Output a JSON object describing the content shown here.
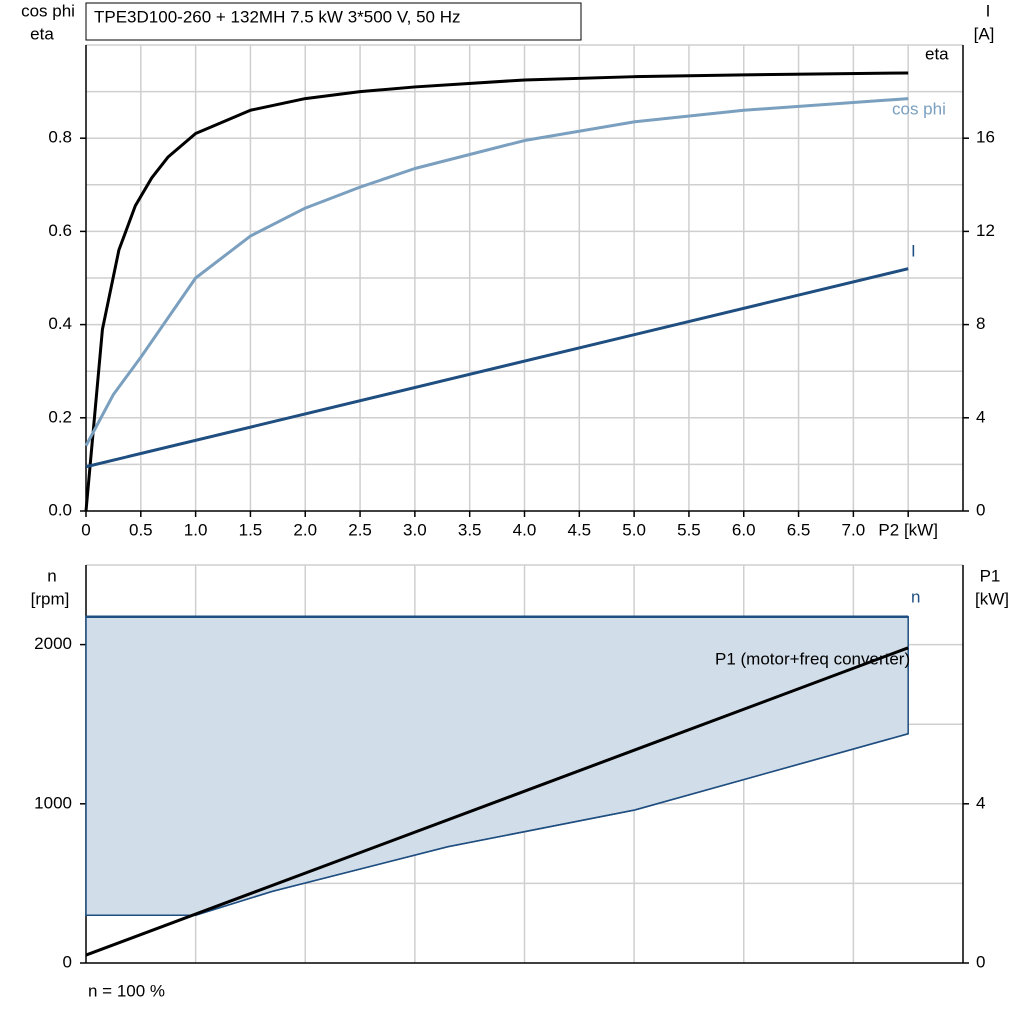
{
  "chart_data": [
    {
      "type": "line",
      "title": "TPE3D100-260 + 132MH   7.5 kW   3*500 V, 50 Hz",
      "ylabel": [
        "cos phi",
        "eta"
      ],
      "y2label": [
        "I",
        "[A]"
      ],
      "xlim": [
        0,
        8
      ],
      "xticks": [
        {
          "value": 0,
          "label": "0"
        },
        0.5,
        {
          "value": 1,
          "label": "1.0"
        },
        1.5,
        {
          "value": 2,
          "label": "2.0"
        },
        2.5,
        {
          "value": 3,
          "label": "3.0"
        },
        3.5,
        {
          "value": 4,
          "label": "4.0"
        },
        4.5,
        {
          "value": 5,
          "label": "5.0"
        },
        5.5,
        {
          "value": 6,
          "label": "6.0"
        },
        6.5,
        {
          "value": 7,
          "label": "7.0"
        },
        {
          "value": 7.5,
          "label": "P2 [kW]"
        }
      ],
      "ylim": [
        0,
        1
      ],
      "yticks": [
        {
          "value": 0,
          "label": "0.0"
        },
        0.2,
        0.4,
        0.6,
        0.8
      ],
      "ygrid": [
        0.1,
        0.2,
        0.3,
        0.4,
        0.5,
        0.6,
        0.7,
        0.8,
        0.9
      ],
      "y2lim": [
        0,
        20
      ],
      "y2ticks": [
        0,
        4,
        8,
        12,
        16
      ],
      "grid": true,
      "series": [
        {
          "name": "eta",
          "color": "#000000",
          "x": [
            0,
            0.15,
            0.3,
            0.45,
            0.6,
            0.75,
            0.9,
            1.0,
            1.5,
            2.0,
            2.5,
            3.0,
            4.0,
            5.0,
            6.0,
            7.5
          ],
          "values": [
            0,
            0.39,
            0.56,
            0.655,
            0.715,
            0.76,
            0.79,
            0.81,
            0.86,
            0.885,
            0.9,
            0.91,
            0.925,
            0.932,
            0.936,
            0.94
          ]
        },
        {
          "name": "cos phi",
          "color": "#7a9fbf",
          "x": [
            0,
            0.25,
            0.5,
            1.0,
            1.5,
            2.0,
            2.5,
            3.0,
            3.5,
            4.0,
            5.0,
            6.0,
            7.5
          ],
          "values": [
            0.14,
            0.25,
            0.33,
            0.5,
            0.59,
            0.65,
            0.695,
            0.735,
            0.765,
            0.795,
            0.835,
            0.86,
            0.885
          ]
        },
        {
          "name": "I",
          "color": "#1f4e80",
          "axis": "y2",
          "x": [
            0,
            7.5
          ],
          "values": [
            1.9,
            10.4
          ]
        }
      ]
    },
    {
      "type": "line",
      "ylabel": [
        "n",
        "[rpm]"
      ],
      "y2label": [
        "P1",
        "[kW]"
      ],
      "xlim": [
        0,
        8
      ],
      "xgrid": [
        1,
        2,
        3,
        4,
        5,
        6,
        7
      ],
      "ylim": [
        0,
        2500
      ],
      "yticks": [
        0,
        1000,
        2000
      ],
      "ygrid": [
        500,
        1000,
        1500,
        2000
      ],
      "y2lim": [
        0,
        10
      ],
      "y2ticks": [
        0,
        4
      ],
      "grid": true,
      "note": "n = 100 %",
      "series": [
        {
          "name": "n",
          "color": "#1f4e80",
          "fill": "#d1dde8",
          "x": [
            0,
            1.0,
            1.7,
            3.3,
            5.0,
            7.5
          ],
          "values": [
            2175,
            2175,
            2175,
            2175,
            2175,
            2175
          ],
          "lower": [
            300,
            300,
            450,
            730,
            960,
            1440
          ]
        },
        {
          "name": "P1 (motor+freq converter)",
          "color": "#000000",
          "axis": "y2",
          "x": [
            0,
            7.5
          ],
          "values": [
            0.2,
            7.92
          ]
        }
      ]
    }
  ]
}
